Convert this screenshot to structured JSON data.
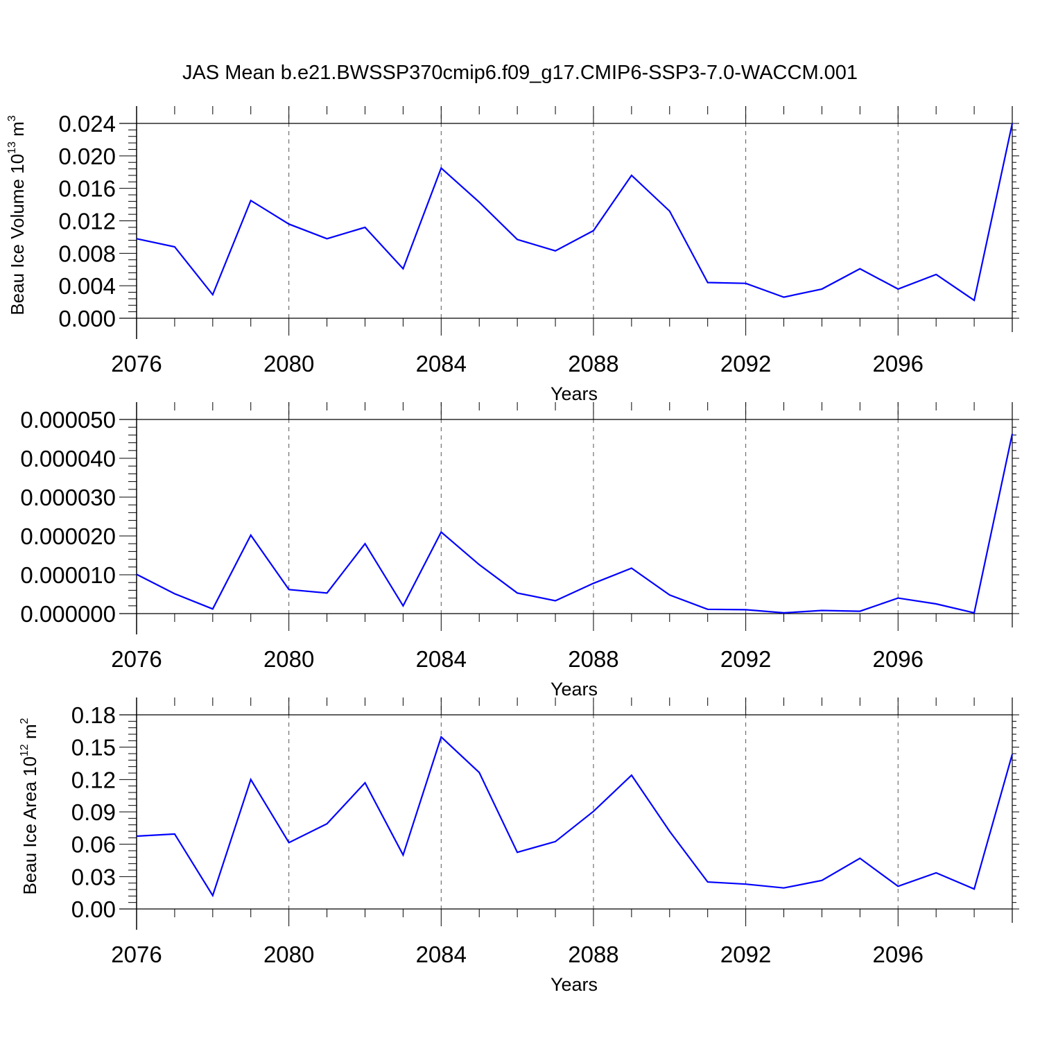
{
  "figure": {
    "title": "JAS Mean b.e21.BWSSP370cmip6.f09_g17.CMIP6-SSP3-7.0-WACCM.001",
    "line_color": "#0000ff",
    "grid_color": "#555555"
  },
  "chart_data": [
    {
      "type": "line",
      "title": "",
      "xlabel": "Years",
      "ylabel": {
        "main": "Beau Ice Volume 10",
        "exp": "13",
        "unit": " m",
        "unit_exp": "3"
      },
      "xlim": [
        2076,
        2099
      ],
      "ylim": [
        0,
        0.024
      ],
      "x_ticks": [
        2076,
        2080,
        2084,
        2088,
        2092,
        2096
      ],
      "y_ticks": [
        0,
        0.004,
        0.008,
        0.012,
        0.016,
        0.02,
        0.024
      ],
      "y_tick_labels": [
        "0.000",
        "0.004",
        "0.008",
        "0.012",
        "0.016",
        "0.020",
        "0.024"
      ],
      "x": [
        2076,
        2077,
        2078,
        2079,
        2080,
        2081,
        2082,
        2083,
        2084,
        2085,
        2086,
        2087,
        2088,
        2089,
        2090,
        2091,
        2092,
        2093,
        2094,
        2095,
        2096,
        2097,
        2098,
        2099
      ],
      "series": [
        {
          "values": [
            0.0098,
            0.0088,
            0.0029,
            0.0145,
            0.0116,
            0.0098,
            0.0112,
            0.0061,
            0.0185,
            0.0143,
            0.0097,
            0.0083,
            0.0108,
            0.0176,
            0.0132,
            0.0044,
            0.0043,
            0.0026,
            0.0036,
            0.0061,
            0.0036,
            0.0054,
            0.0022,
            0.024
          ]
        }
      ],
      "grid": "vertical dashed at major x ticks"
    },
    {
      "type": "line",
      "title": "",
      "xlabel": "Years",
      "ylabel": null,
      "xlim": [
        2076,
        2099
      ],
      "ylim": [
        0,
        5e-05
      ],
      "x_ticks": [
        2076,
        2080,
        2084,
        2088,
        2092,
        2096
      ],
      "y_ticks": [
        0,
        1e-05,
        2e-05,
        3e-05,
        4e-05,
        5e-05
      ],
      "y_tick_labels": [
        "0.000000",
        "0.000010",
        "0.000020",
        "0.000030",
        "0.000040",
        "0.000050"
      ],
      "x": [
        2076,
        2077,
        2078,
        2079,
        2080,
        2081,
        2082,
        2083,
        2084,
        2085,
        2086,
        2087,
        2088,
        2089,
        2090,
        2091,
        2092,
        2093,
        2094,
        2095,
        2096,
        2097,
        2098,
        2099
      ],
      "series": [
        {
          "values": [
            1.01e-05,
            5.1e-06,
            1.2e-06,
            2.02e-05,
            6.2e-06,
            5.3e-06,
            1.8e-05,
            2e-06,
            2.1e-05,
            1.26e-05,
            5.3e-06,
            3.3e-06,
            7.8e-06,
            1.17e-05,
            4.8e-06,
            1.1e-06,
            1e-06,
            2e-07,
            8e-07,
            6e-07,
            4e-06,
            2.5e-06,
            2e-07,
            4.63e-05
          ]
        }
      ],
      "grid": "vertical dashed at major x ticks"
    },
    {
      "type": "line",
      "title": "",
      "xlabel": "Years",
      "ylabel": {
        "main": "Beau Ice Area 10",
        "exp": "12",
        "unit": " m",
        "unit_exp": "2"
      },
      "xlim": [
        2076,
        2099
      ],
      "ylim": [
        0,
        0.18
      ],
      "x_ticks": [
        2076,
        2080,
        2084,
        2088,
        2092,
        2096
      ],
      "y_ticks": [
        0,
        0.03,
        0.06,
        0.09,
        0.12,
        0.15,
        0.18
      ],
      "y_tick_labels": [
        "0.00",
        "0.03",
        "0.06",
        "0.09",
        "0.12",
        "0.15",
        "0.18"
      ],
      "x": [
        2076,
        2077,
        2078,
        2079,
        2080,
        2081,
        2082,
        2083,
        2084,
        2085,
        2086,
        2087,
        2088,
        2089,
        2090,
        2091,
        2092,
        2093,
        2094,
        2095,
        2096,
        2097,
        2098,
        2099
      ],
      "series": [
        {
          "values": [
            0.0675,
            0.0695,
            0.0125,
            0.12,
            0.0615,
            0.079,
            0.117,
            0.05,
            0.1595,
            0.1265,
            0.0525,
            0.0625,
            0.0905,
            0.124,
            0.072,
            0.025,
            0.023,
            0.0195,
            0.0265,
            0.047,
            0.021,
            0.0335,
            0.0185,
            0.1435
          ]
        }
      ],
      "grid": "vertical dashed at major x ticks"
    }
  ]
}
